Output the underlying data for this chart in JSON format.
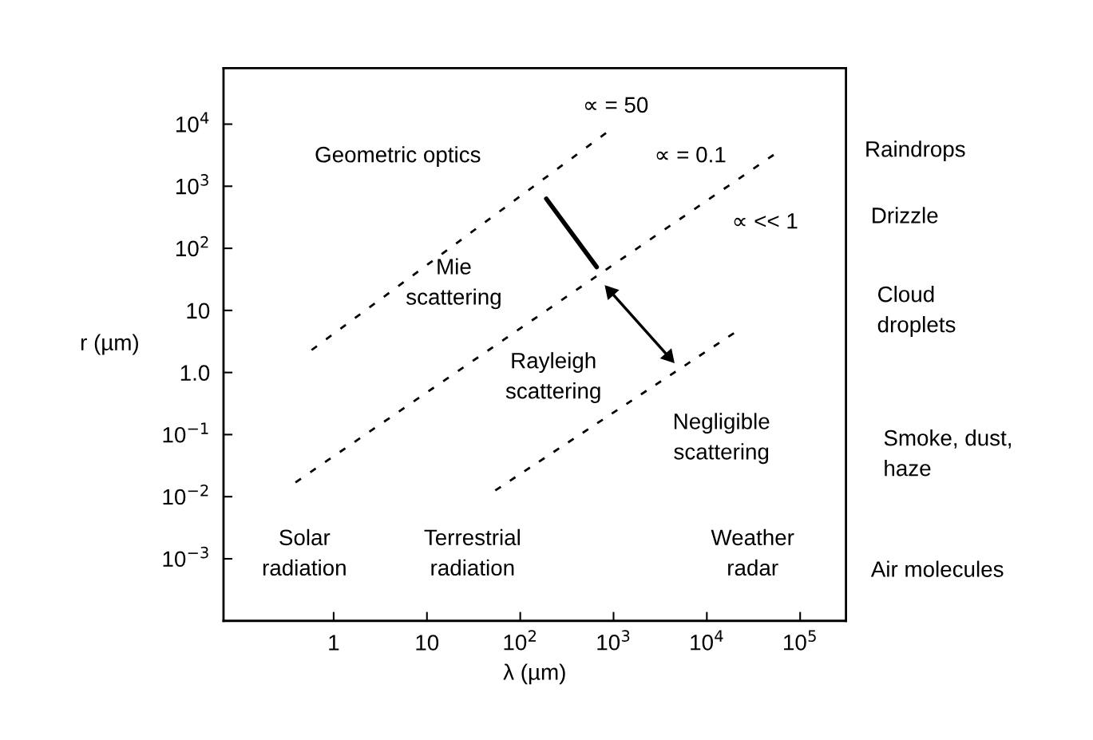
{
  "chart_data": {
    "type": "line",
    "xlabel": "λ (µm)",
    "ylabel": "r (µm)",
    "log": "xy",
    "xlim": [
      0.066,
      310000
    ],
    "ylim": [
      0.0001,
      80000
    ],
    "xticks": [
      {
        "value": 1,
        "label": "1"
      },
      {
        "value": 10,
        "label": "10"
      },
      {
        "value": 100,
        "label": "10$^{2}$"
      },
      {
        "value": 1000,
        "label": "10$^{3}$"
      },
      {
        "value": 10000,
        "label": "10$^{4}$"
      },
      {
        "value": 100000,
        "label": "10$^{5}$"
      }
    ],
    "yticks": [
      {
        "value": 0.001,
        "label": "10$^{−3}$"
      },
      {
        "value": 0.01,
        "label": "10$^{−2}$"
      },
      {
        "value": 0.1,
        "label": "10$^{−1}$"
      },
      {
        "value": 1,
        "label": "1.0"
      },
      {
        "value": 10,
        "label": "10"
      },
      {
        "value": 100,
        "label": "10$^{2}$"
      },
      {
        "value": 1000,
        "label": "10$^{3}$"
      },
      {
        "value": 10000,
        "label": "10$^{4}$"
      }
    ],
    "grid": false,
    "legend": false,
    "series": [
      {
        "color": "#000000",
        "line_style": "dotted",
        "marker": "none",
        "x": [
          0.58,
          830
        ],
        "values": [
          2.3,
          7200
        ]
      },
      {
        "color": "#000000",
        "line_style": "dotted",
        "marker": "none",
        "x": [
          0.39,
          52000
        ],
        "values": [
          0.017,
          3200
        ]
      },
      {
        "color": "#000000",
        "line_style": "dotted",
        "marker": "none",
        "x": [
          54,
          19500
        ],
        "values": [
          0.0126,
          4.3
        ]
      },
      {
        "color": "#000000",
        "line_style": "solid",
        "marker": "none",
        "x": [
          190,
          660
        ],
        "values": [
          630,
          50
        ]
      },
      {
        "color": "#000000",
        "line_style": "solid",
        "marker": "triangle",
        "x": [
          930,
          3900
        ],
        "values": [
          20,
          1.8
        ]
      }
    ],
    "annotations": [
      "∝ = 50",
      "∝ = 0.1",
      "∝ << 1",
      "Geometric optics",
      "Mie\nscattering",
      "Rayleigh\nscattering",
      "Negligible\nscattering",
      "Solar\nradiation",
      "Terrestrial\nradiation",
      "Weather\nradar",
      "Raindrops",
      "Drizzle",
      "Cloud\ndroplets",
      "Smoke, dust,\nhaze",
      "Air molecules"
    ]
  }
}
